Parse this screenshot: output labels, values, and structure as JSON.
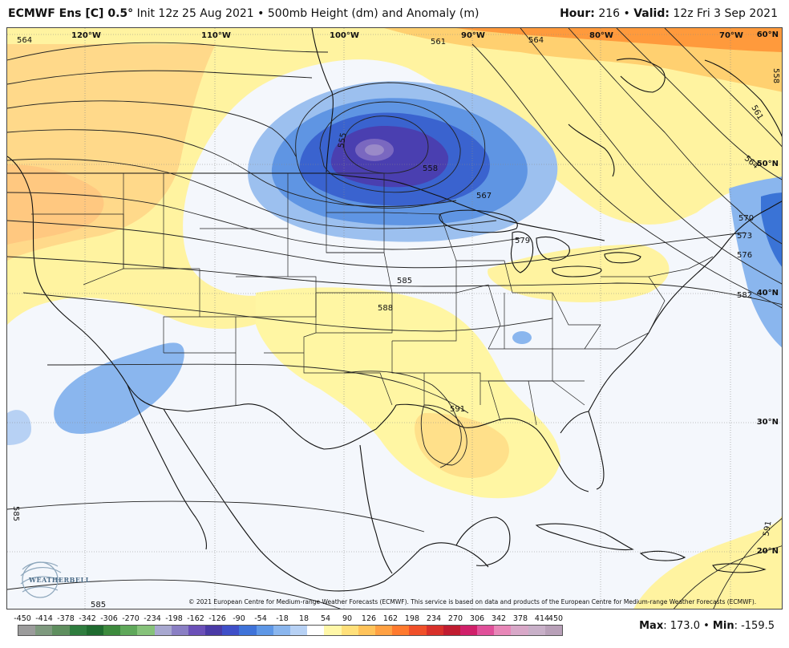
{
  "header": {
    "model": "ECMWF Ens [C] 0.5",
    "degree": "°",
    "init": "Init 12z 25 Aug 2021",
    "bullet": "•",
    "field": "500mb Height (dm) and Anomaly (m)",
    "hour_label": "Hour:",
    "hour_value": "216",
    "valid_label": "Valid:",
    "valid_value": "12z Fri 3 Sep 2021"
  },
  "longitudes": [
    "120°W",
    "110°W",
    "100°W",
    "90°W",
    "80°W",
    "70°W"
  ],
  "latitudes": [
    "60°N",
    "50°N",
    "40°N",
    "30°N",
    "20°N"
  ],
  "contour_labels": [
    "564",
    "561",
    "564",
    "555",
    "558",
    "567",
    "579",
    "585",
    "588",
    "570",
    "573",
    "576",
    "582",
    "591",
    "558",
    "561",
    "564",
    "585",
    "591",
    "585"
  ],
  "copyright": "© 2021 European Centre for Medium-range Weather Forecasts (ECMWF). This service is based on data and products of the European Centre for Medium-range Weather Forecasts (ECMWF).",
  "logo_text": "WEATHERBELL",
  "scale": {
    "labels": [
      "-450",
      "-414",
      "-378",
      "-342",
      "-306",
      "-270",
      "-234",
      "-198",
      "-162",
      "-126",
      "-90",
      "-54",
      "-18",
      "18",
      "54",
      "90",
      "126",
      "162",
      "198",
      "234",
      "270",
      "306",
      "342",
      "378",
      "414",
      "450"
    ],
    "colors": [
      "#9c9c9c",
      "#7f9a7f",
      "#5f8f5f",
      "#2f7d3f",
      "#1f6b2f",
      "#3d8a3d",
      "#5fa85a",
      "#86c27a",
      "#a8a8d0",
      "#8a7fc4",
      "#6b50b8",
      "#4a3aa6",
      "#3f4fc8",
      "#3f73d9",
      "#5e97e6",
      "#8ab6ee",
      "#b7d1f4",
      "#ffffff",
      "#fff7a8",
      "#ffe07a",
      "#ffc35a",
      "#ffa143",
      "#ff7a2e",
      "#f0502a",
      "#d8302a",
      "#c01c30",
      "#d0206a",
      "#e0509a",
      "#e887b8",
      "#d8a8c8",
      "#c8b0c8",
      "#b8a0b8"
    ]
  },
  "stats": {
    "max_label": "Max",
    "max_value": ": 173.0",
    "bullet": "•",
    "min_label": "Min",
    "min_value": ": -159.5"
  },
  "colors": {
    "cold_core": "#6d5bb5",
    "cold_mid": "#3a73d6",
    "cold_edge": "#8ab6ee",
    "warm_light": "#fff8a8",
    "warm_mid": "#ffd77a",
    "warm_strong": "#ff9a3c",
    "background": "#f4f7fc"
  }
}
